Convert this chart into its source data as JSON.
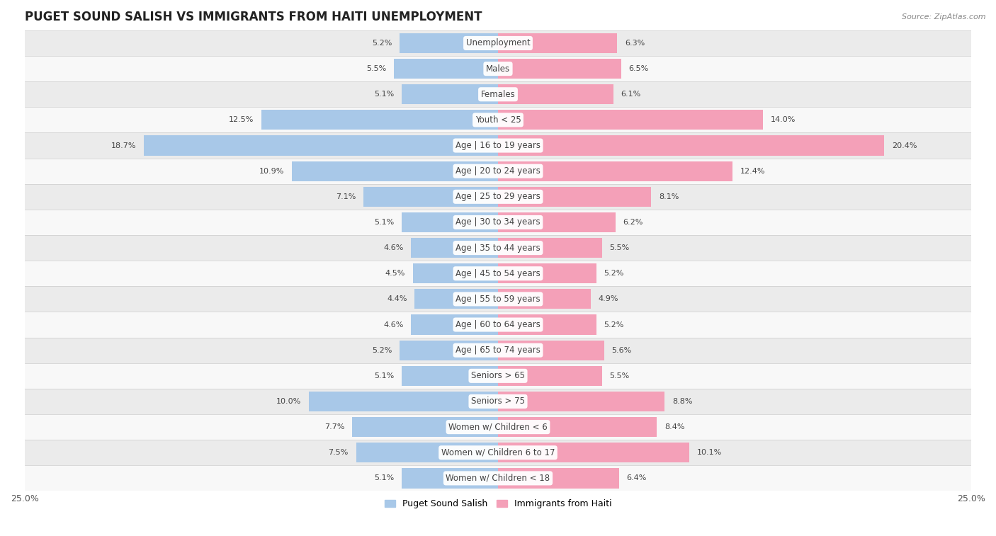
{
  "title": "PUGET SOUND SALISH VS IMMIGRANTS FROM HAITI UNEMPLOYMENT",
  "source": "Source: ZipAtlas.com",
  "categories": [
    "Unemployment",
    "Males",
    "Females",
    "Youth < 25",
    "Age | 16 to 19 years",
    "Age | 20 to 24 years",
    "Age | 25 to 29 years",
    "Age | 30 to 34 years",
    "Age | 35 to 44 years",
    "Age | 45 to 54 years",
    "Age | 55 to 59 years",
    "Age | 60 to 64 years",
    "Age | 65 to 74 years",
    "Seniors > 65",
    "Seniors > 75",
    "Women w/ Children < 6",
    "Women w/ Children 6 to 17",
    "Women w/ Children < 18"
  ],
  "left_values": [
    5.2,
    5.5,
    5.1,
    12.5,
    18.7,
    10.9,
    7.1,
    5.1,
    4.6,
    4.5,
    4.4,
    4.6,
    5.2,
    5.1,
    10.0,
    7.7,
    7.5,
    5.1
  ],
  "right_values": [
    6.3,
    6.5,
    6.1,
    14.0,
    20.4,
    12.4,
    8.1,
    6.2,
    5.5,
    5.2,
    4.9,
    5.2,
    5.6,
    5.5,
    8.8,
    8.4,
    10.1,
    6.4
  ],
  "left_color": "#a8c8e8",
  "right_color": "#f4a0b8",
  "background_row_odd": "#ebebeb",
  "background_row_even": "#f8f8f8",
  "axis_max": 25.0,
  "left_label": "Puget Sound Salish",
  "right_label": "Immigrants from Haiti",
  "bar_height": 0.78,
  "title_fontsize": 12,
  "label_fontsize": 8.5,
  "value_fontsize": 8.0
}
